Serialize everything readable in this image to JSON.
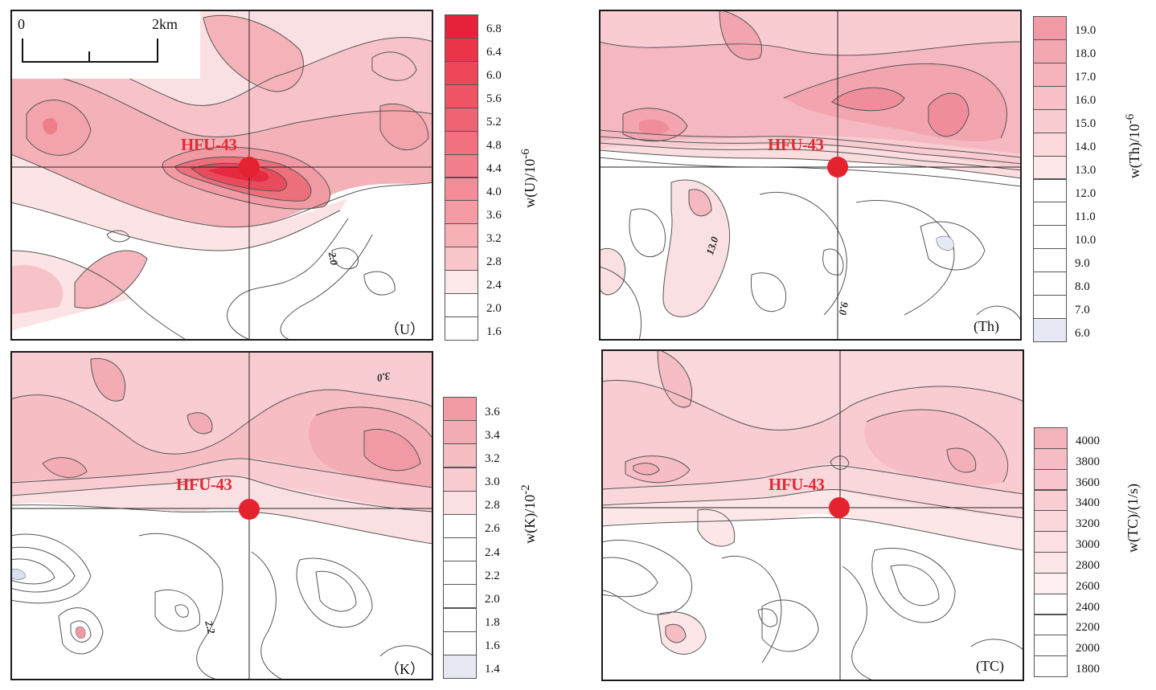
{
  "scale_bar": {
    "start_label": "0",
    "end_label": "2km"
  },
  "well": {
    "name": "HFU-43",
    "color": "#e4232f"
  },
  "panels": [
    {
      "id": "U",
      "tag": "（U）",
      "legend_title": "w(U)/10",
      "legend_exp": "-6",
      "legend_levels": [
        "6.8",
        "6.4",
        "6.0",
        "5.6",
        "5.2",
        "4.8",
        "4.4",
        "4.0",
        "3.6",
        "3.2",
        "2.8",
        "2.4",
        "2.0",
        "1.6"
      ],
      "legend_colors": [
        "#e8213b",
        "#ea3549",
        "#ec4658",
        "#ed5565",
        "#ef6373",
        "#f17180",
        "#f27f8b",
        "#f48d97",
        "#f59ba4",
        "#f7b0b6",
        "#f9c6ca",
        "#fde9ea",
        "#ffffff",
        "#ffffff"
      ],
      "contour_labels": [
        "2.0"
      ]
    },
    {
      "id": "Th",
      "tag": "(Th)",
      "legend_title": "w(Th)/10",
      "legend_exp": "-6",
      "legend_levels": [
        "19.0",
        "18.0",
        "17.0",
        "16.0",
        "15.0",
        "14.0",
        "13.0",
        "12.0",
        "11.0",
        "10.0",
        "9.0",
        "8.0",
        "7.0",
        "6.0"
      ],
      "legend_colors": [
        "#f19aa5",
        "#f3a7b0",
        "#f5b3bb",
        "#f7c0c6",
        "#f9ccd1",
        "#fbd9dc",
        "#fde7e9",
        "#ffffff",
        "#ffffff",
        "#ffffff",
        "#ffffff",
        "#ffffff",
        "#ffffff",
        "#e6e8f4"
      ],
      "contour_labels": [
        "13.0",
        "9.0"
      ]
    },
    {
      "id": "K",
      "tag": "（K）",
      "legend_title": "w(K)/10",
      "legend_exp": "-2",
      "legend_levels": [
        "3.6",
        "3.4",
        "3.2",
        "3.0",
        "2.8",
        "2.6",
        "2.4",
        "2.2",
        "2.0",
        "1.8",
        "1.6",
        "1.4"
      ],
      "legend_colors": [
        "#f19aa5",
        "#f4acb4",
        "#f6bdc3",
        "#f8ccd1",
        "#fbe0e3",
        "#ffffff",
        "#ffffff",
        "#ffffff",
        "#ffffff",
        "#ffffff",
        "#ffffff",
        "#e6e8f4"
      ],
      "contour_labels": [
        "3.0",
        "2.2"
      ]
    },
    {
      "id": "TC",
      "tag": "(TC)",
      "legend_title": "w(TC)/(1/s)",
      "legend_exp": "",
      "legend_levels": [
        "4000",
        "3800",
        "3600",
        "3400",
        "3200",
        "3000",
        "2800",
        "2600",
        "2400",
        "2200",
        "2000",
        "1800"
      ],
      "legend_colors": [
        "#f4b3bb",
        "#f6bcc3",
        "#f7c5cb",
        "#f9ced3",
        "#fad7db",
        "#fbdfe2",
        "#fde6e8",
        "#feeef0",
        "#ffffff",
        "#ffffff",
        "#ffffff",
        "#ffffff"
      ],
      "contour_labels": []
    }
  ]
}
